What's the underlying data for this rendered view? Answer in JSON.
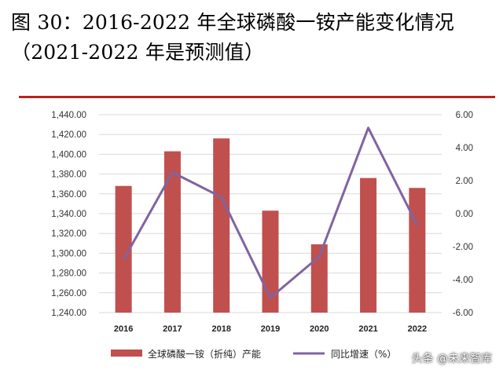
{
  "title": {
    "line1": "图 30：2016-2022 年全球磷酸一铵产能变化情况",
    "line2": "（2021-2022 年是预测值）"
  },
  "watermark": "头条 @未来智库",
  "colors": {
    "bar": "#c0504d",
    "line": "#8064a2",
    "rule": "#c0201f",
    "grid": "#d9d9d9"
  },
  "chart_data": {
    "type": "bar+line",
    "categories": [
      "2016",
      "2017",
      "2018",
      "2019",
      "2020",
      "2021",
      "2022"
    ],
    "series": [
      {
        "name": "全球磷酸一铵（折纯）产能",
        "type": "bar",
        "axis": "left",
        "values": [
          1368,
          1403,
          1416,
          1343,
          1309,
          1376,
          1366
        ]
      },
      {
        "name": "同比增速（%）",
        "type": "line",
        "axis": "right",
        "values": [
          -2.8,
          2.5,
          1.0,
          -5.1,
          -2.6,
          5.2,
          -0.7
        ]
      }
    ],
    "y_left": {
      "min": 1240,
      "max": 1440,
      "step": 20,
      "tick_labels": [
        "1,240.00",
        "1,260.00",
        "1,280.00",
        "1,300.00",
        "1,320.00",
        "1,340.00",
        "1,360.00",
        "1,380.00",
        "1,400.00",
        "1,420.00",
        "1,440.00"
      ]
    },
    "y_right": {
      "min": -6,
      "max": 6,
      "step": 2,
      "tick_labels": [
        "-6.00",
        "-4.00",
        "-2.00",
        "0.00",
        "2.00",
        "4.00",
        "6.00"
      ]
    },
    "grid": true,
    "legend": {
      "position": "bottom"
    }
  }
}
